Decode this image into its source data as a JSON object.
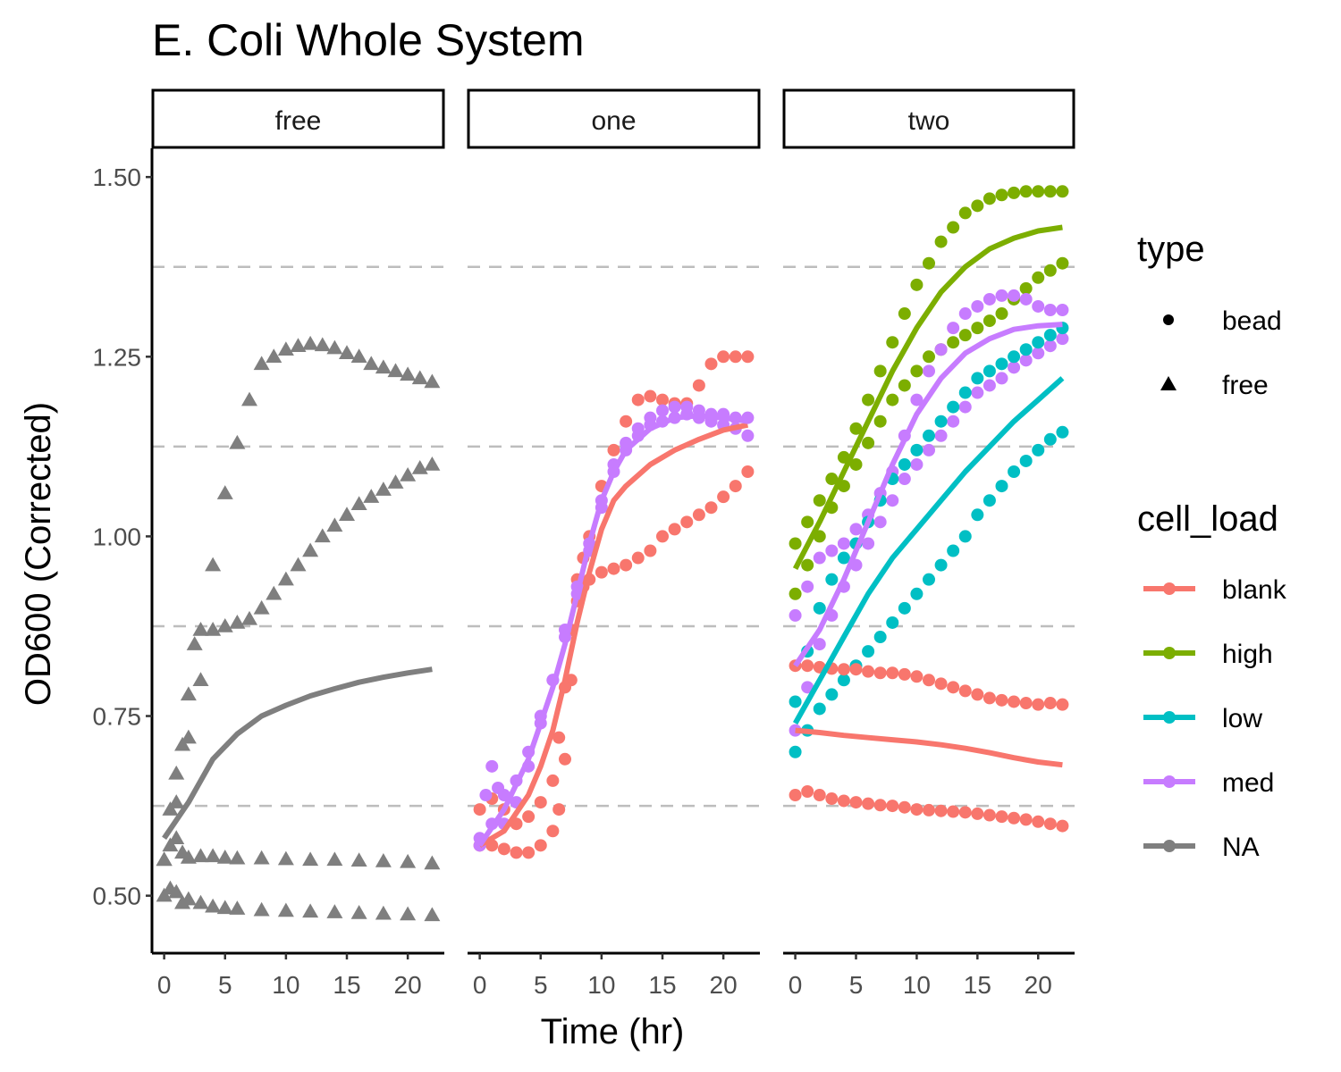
{
  "chart_data": {
    "type": "scatter",
    "title": "E. Coli Whole System",
    "xlabel": "Time (hr)",
    "ylabel": "OD600 (Corrected)",
    "xlim": [
      -1,
      23
    ],
    "ylim": [
      0.42,
      1.54
    ],
    "x_ticks": [
      0,
      5,
      10,
      15,
      20
    ],
    "y_ticks": [
      0.5,
      0.75,
      1.0,
      1.25,
      1.5
    ],
    "y_tick_labels": [
      "0.50",
      "0.75",
      "1.00",
      "1.25",
      "1.50"
    ],
    "x_tick_labels": [
      "0",
      "5",
      "10",
      "15",
      "20"
    ],
    "reference_lines": [
      0.625,
      0.875,
      1.125,
      1.375
    ],
    "facets": [
      "free",
      "one",
      "two"
    ],
    "grid": false,
    "legend_position": "right",
    "legend": {
      "type": {
        "title": "type",
        "items": [
          {
            "label": "bead",
            "shape": "circle"
          },
          {
            "label": "free",
            "shape": "triangle"
          }
        ]
      },
      "cell_load": {
        "title": "cell_load",
        "items": [
          {
            "label": "blank",
            "color": "#F8766D"
          },
          {
            "label": "high",
            "color": "#7CAE00"
          },
          {
            "label": "low",
            "color": "#00BFC4"
          },
          {
            "label": "med",
            "color": "#C77CFF"
          },
          {
            "label": "NA",
            "color": "#7F7F7F"
          }
        ]
      }
    },
    "series": [
      {
        "facet": "free",
        "cell_load": "NA",
        "type": "free",
        "x": [
          0,
          0.5,
          1,
          1.5,
          2,
          2.5,
          3,
          4,
          5,
          6,
          7,
          8,
          9,
          10,
          11,
          12,
          13,
          14,
          15,
          16,
          17,
          18,
          19,
          20,
          21,
          22
        ],
        "y": [
          0.55,
          0.62,
          0.67,
          0.71,
          0.78,
          0.85,
          0.87,
          0.96,
          1.06,
          1.13,
          1.19,
          1.24,
          1.25,
          1.26,
          1.265,
          1.268,
          1.266,
          1.262,
          1.255,
          1.25,
          1.24,
          1.235,
          1.23,
          1.225,
          1.22,
          1.215
        ]
      },
      {
        "facet": "free",
        "cell_load": "NA",
        "type": "free",
        "x": [
          0,
          1,
          2,
          3,
          4,
          5,
          6,
          7,
          8,
          9,
          10,
          11,
          12,
          13,
          14,
          15,
          16,
          17,
          18,
          19,
          20,
          21,
          22
        ],
        "y": [
          0.55,
          0.63,
          0.72,
          0.8,
          0.87,
          0.875,
          0.88,
          0.885,
          0.9,
          0.92,
          0.94,
          0.96,
          0.98,
          1.0,
          1.015,
          1.03,
          1.045,
          1.055,
          1.065,
          1.075,
          1.085,
          1.095,
          1.1
        ]
      },
      {
        "facet": "free",
        "cell_load": "NA",
        "type": "free",
        "x": [
          0,
          0.5,
          1,
          1.5,
          2,
          3,
          4,
          5,
          6,
          8,
          10,
          12,
          14,
          16,
          18,
          20,
          22
        ],
        "y": [
          0.55,
          0.57,
          0.58,
          0.56,
          0.553,
          0.555,
          0.555,
          0.553,
          0.552,
          0.552,
          0.551,
          0.55,
          0.55,
          0.549,
          0.548,
          0.547,
          0.545
        ]
      },
      {
        "facet": "free",
        "cell_load": "NA",
        "type": "free",
        "x": [
          0,
          0.5,
          1,
          1.5,
          2,
          3,
          4,
          5,
          6,
          8,
          10,
          12,
          14,
          16,
          18,
          20,
          22
        ],
        "y": [
          0.5,
          0.51,
          0.505,
          0.49,
          0.495,
          0.49,
          0.485,
          0.483,
          0.482,
          0.48,
          0.479,
          0.478,
          0.477,
          0.476,
          0.475,
          0.474,
          0.473
        ]
      },
      {
        "facet": "one",
        "cell_load": "blank",
        "type": "bead",
        "x": [
          0,
          1,
          2,
          3,
          4,
          5,
          6,
          6.5,
          7,
          7.5,
          8,
          8.5,
          9,
          10,
          11,
          12,
          13,
          14,
          15,
          16,
          17,
          18,
          19,
          20,
          21,
          22
        ],
        "y": [
          0.57,
          0.57,
          0.565,
          0.56,
          0.56,
          0.57,
          0.59,
          0.62,
          0.69,
          0.8,
          0.91,
          0.93,
          0.94,
          0.95,
          0.955,
          0.96,
          0.97,
          0.98,
          1.0,
          1.01,
          1.02,
          1.03,
          1.04,
          1.055,
          1.07,
          1.09
        ]
      },
      {
        "facet": "one",
        "cell_load": "blank",
        "type": "bead",
        "x": [
          0,
          1,
          2,
          3,
          4,
          5,
          6,
          6.5,
          7,
          7.5,
          8,
          8.5,
          9,
          10,
          11,
          12,
          13,
          14,
          15,
          16,
          17,
          18,
          19,
          20,
          21,
          22
        ],
        "y": [
          0.62,
          0.635,
          0.62,
          0.6,
          0.61,
          0.63,
          0.66,
          0.72,
          0.79,
          0.87,
          0.94,
          0.97,
          1.0,
          1.07,
          1.12,
          1.16,
          1.19,
          1.195,
          1.19,
          1.185,
          1.185,
          1.21,
          1.24,
          1.25,
          1.25,
          1.25
        ]
      },
      {
        "facet": "one",
        "cell_load": "med",
        "type": "bead",
        "x": [
          0,
          1,
          2,
          3,
          4,
          5,
          6,
          7,
          8,
          9,
          10,
          11,
          12,
          13,
          14,
          15,
          16,
          17,
          18,
          19,
          20,
          21,
          22
        ],
        "y": [
          0.57,
          0.6,
          0.64,
          0.66,
          0.7,
          0.75,
          0.8,
          0.86,
          0.92,
          0.98,
          1.04,
          1.09,
          1.12,
          1.14,
          1.155,
          1.16,
          1.165,
          1.17,
          1.165,
          1.16,
          1.155,
          1.15,
          1.14
        ]
      },
      {
        "facet": "one",
        "cell_load": "med",
        "type": "bead",
        "x": [
          0,
          0.5,
          1,
          1.5,
          2,
          3,
          4,
          5,
          6,
          7,
          8,
          9,
          10,
          11,
          12,
          13,
          14,
          15,
          16,
          17,
          18,
          19,
          20,
          21,
          22
        ],
        "y": [
          0.58,
          0.64,
          0.68,
          0.65,
          0.6,
          0.63,
          0.68,
          0.74,
          0.8,
          0.87,
          0.93,
          0.99,
          1.05,
          1.1,
          1.13,
          1.15,
          1.165,
          1.175,
          1.18,
          1.18,
          1.175,
          1.17,
          1.17,
          1.165,
          1.165
        ]
      },
      {
        "facet": "two",
        "cell_load": "high",
        "type": "bead",
        "x": [
          0,
          1,
          2,
          3,
          4,
          5,
          6,
          7,
          8,
          9,
          10,
          11,
          12,
          13,
          14,
          15,
          16,
          17,
          18,
          19,
          20,
          21,
          22
        ],
        "y": [
          0.99,
          1.02,
          1.05,
          1.08,
          1.11,
          1.15,
          1.19,
          1.23,
          1.27,
          1.31,
          1.35,
          1.38,
          1.41,
          1.43,
          1.45,
          1.46,
          1.47,
          1.475,
          1.478,
          1.48,
          1.48,
          1.48,
          1.48
        ]
      },
      {
        "facet": "two",
        "cell_load": "high",
        "type": "bead",
        "x": [
          0,
          1,
          2,
          3,
          4,
          5,
          6,
          7,
          8,
          9,
          10,
          11,
          12,
          13,
          14,
          15,
          16,
          17,
          18,
          19,
          20,
          21,
          22
        ],
        "y": [
          0.92,
          0.96,
          1.0,
          1.04,
          1.07,
          1.1,
          1.13,
          1.16,
          1.19,
          1.21,
          1.23,
          1.25,
          1.26,
          1.27,
          1.28,
          1.29,
          1.3,
          1.31,
          1.33,
          1.345,
          1.36,
          1.37,
          1.38
        ]
      },
      {
        "facet": "two",
        "cell_load": "med",
        "type": "bead",
        "x": [
          0,
          1,
          2,
          3,
          4,
          5,
          6,
          7,
          8,
          9,
          10,
          11,
          12,
          13,
          14,
          15,
          16,
          17,
          18,
          19,
          20,
          21,
          22
        ],
        "y": [
          0.89,
          0.93,
          0.97,
          0.98,
          0.99,
          1.01,
          1.03,
          1.06,
          1.09,
          1.14,
          1.19,
          1.23,
          1.26,
          1.29,
          1.31,
          1.32,
          1.33,
          1.335,
          1.335,
          1.33,
          1.32,
          1.315,
          1.315
        ]
      },
      {
        "facet": "two",
        "cell_load": "med",
        "type": "bead",
        "x": [
          0,
          1,
          2,
          3,
          4,
          5,
          6,
          7,
          8,
          9,
          10,
          11,
          12,
          13,
          14,
          15,
          16,
          17,
          18,
          19,
          20,
          21,
          22
        ],
        "y": [
          0.73,
          0.79,
          0.85,
          0.89,
          0.93,
          0.96,
          0.99,
          1.02,
          1.05,
          1.08,
          1.1,
          1.12,
          1.14,
          1.16,
          1.18,
          1.2,
          1.21,
          1.22,
          1.235,
          1.245,
          1.255,
          1.265,
          1.275
        ]
      },
      {
        "facet": "two",
        "cell_load": "low",
        "type": "bead",
        "x": [
          0,
          1,
          2,
          3,
          4,
          5,
          6,
          7,
          8,
          9,
          10,
          11,
          12,
          13,
          14,
          15,
          16,
          17,
          18,
          19,
          20,
          21,
          22
        ],
        "y": [
          0.77,
          0.84,
          0.9,
          0.94,
          0.97,
          0.99,
          1.02,
          1.05,
          1.08,
          1.1,
          1.12,
          1.14,
          1.16,
          1.18,
          1.2,
          1.22,
          1.23,
          1.24,
          1.25,
          1.26,
          1.27,
          1.28,
          1.29
        ]
      },
      {
        "facet": "two",
        "cell_load": "low",
        "type": "bead",
        "x": [
          0,
          1,
          2,
          3,
          4,
          5,
          6,
          7,
          8,
          9,
          10,
          11,
          12,
          13,
          14,
          15,
          16,
          17,
          18,
          19,
          20,
          21,
          22
        ],
        "y": [
          0.7,
          0.73,
          0.76,
          0.78,
          0.8,
          0.82,
          0.84,
          0.86,
          0.88,
          0.9,
          0.92,
          0.94,
          0.96,
          0.98,
          1.0,
          1.03,
          1.05,
          1.07,
          1.09,
          1.105,
          1.12,
          1.135,
          1.145
        ]
      },
      {
        "facet": "two",
        "cell_load": "blank",
        "type": "bead",
        "x": [
          0,
          1,
          2,
          3,
          4,
          5,
          6,
          7,
          8,
          9,
          10,
          11,
          12,
          13,
          14,
          15,
          16,
          17,
          18,
          19,
          20,
          21,
          22
        ],
        "y": [
          0.82,
          0.82,
          0.818,
          0.816,
          0.815,
          0.815,
          0.812,
          0.81,
          0.81,
          0.808,
          0.805,
          0.8,
          0.795,
          0.79,
          0.785,
          0.78,
          0.775,
          0.772,
          0.77,
          0.768,
          0.766,
          0.768,
          0.766
        ]
      },
      {
        "facet": "two",
        "cell_load": "blank",
        "type": "bead",
        "x": [
          0,
          1,
          2,
          3,
          4,
          5,
          6,
          7,
          8,
          9,
          10,
          11,
          12,
          13,
          14,
          15,
          16,
          17,
          18,
          19,
          20,
          21,
          22
        ],
        "y": [
          0.64,
          0.645,
          0.64,
          0.635,
          0.632,
          0.63,
          0.628,
          0.626,
          0.625,
          0.623,
          0.62,
          0.619,
          0.618,
          0.617,
          0.616,
          0.614,
          0.612,
          0.61,
          0.608,
          0.606,
          0.603,
          0.6,
          0.597
        ]
      }
    ],
    "smooth_lines": [
      {
        "facet": "free",
        "cell_load": "NA",
        "x": [
          0,
          2,
          4,
          6,
          8,
          10,
          12,
          14,
          16,
          18,
          20,
          22
        ],
        "y": [
          0.58,
          0.63,
          0.69,
          0.725,
          0.75,
          0.765,
          0.778,
          0.788,
          0.797,
          0.804,
          0.81,
          0.815
        ]
      },
      {
        "facet": "one",
        "cell_load": "blank",
        "x": [
          0,
          2,
          4,
          5,
          6,
          7,
          8,
          9,
          10,
          11,
          12,
          14,
          16,
          18,
          20,
          22
        ],
        "y": [
          0.57,
          0.59,
          0.64,
          0.68,
          0.73,
          0.8,
          0.88,
          0.95,
          1.01,
          1.05,
          1.07,
          1.1,
          1.12,
          1.135,
          1.148,
          1.155
        ]
      },
      {
        "facet": "one",
        "cell_load": "med",
        "x": [
          0,
          2,
          4,
          5,
          6,
          7,
          8,
          9,
          10,
          11,
          12,
          14,
          16,
          18,
          20,
          22
        ],
        "y": [
          0.57,
          0.62,
          0.69,
          0.74,
          0.79,
          0.85,
          0.92,
          0.99,
          1.05,
          1.09,
          1.12,
          1.15,
          1.165,
          1.168,
          1.165,
          1.16
        ]
      },
      {
        "facet": "two",
        "cell_load": "high",
        "x": [
          0,
          2,
          4,
          6,
          8,
          10,
          12,
          14,
          16,
          18,
          20,
          22
        ],
        "y": [
          0.955,
          1.02,
          1.09,
          1.16,
          1.23,
          1.29,
          1.34,
          1.375,
          1.4,
          1.415,
          1.425,
          1.43
        ]
      },
      {
        "facet": "two",
        "cell_load": "med",
        "x": [
          0,
          2,
          4,
          6,
          8,
          10,
          12,
          14,
          16,
          18,
          20,
          22
        ],
        "y": [
          0.82,
          0.87,
          0.94,
          1.02,
          1.1,
          1.17,
          1.22,
          1.255,
          1.275,
          1.288,
          1.293,
          1.295
        ]
      },
      {
        "facet": "two",
        "cell_load": "low",
        "x": [
          0,
          2,
          4,
          6,
          8,
          10,
          12,
          14,
          16,
          18,
          20,
          22
        ],
        "y": [
          0.74,
          0.8,
          0.86,
          0.92,
          0.97,
          1.01,
          1.05,
          1.09,
          1.125,
          1.16,
          1.19,
          1.22
        ]
      },
      {
        "facet": "two",
        "cell_load": "blank",
        "x": [
          0,
          2,
          4,
          6,
          8,
          10,
          12,
          14,
          16,
          18,
          20,
          22
        ],
        "y": [
          0.73,
          0.727,
          0.723,
          0.72,
          0.717,
          0.714,
          0.71,
          0.705,
          0.699,
          0.692,
          0.686,
          0.682
        ]
      }
    ]
  }
}
